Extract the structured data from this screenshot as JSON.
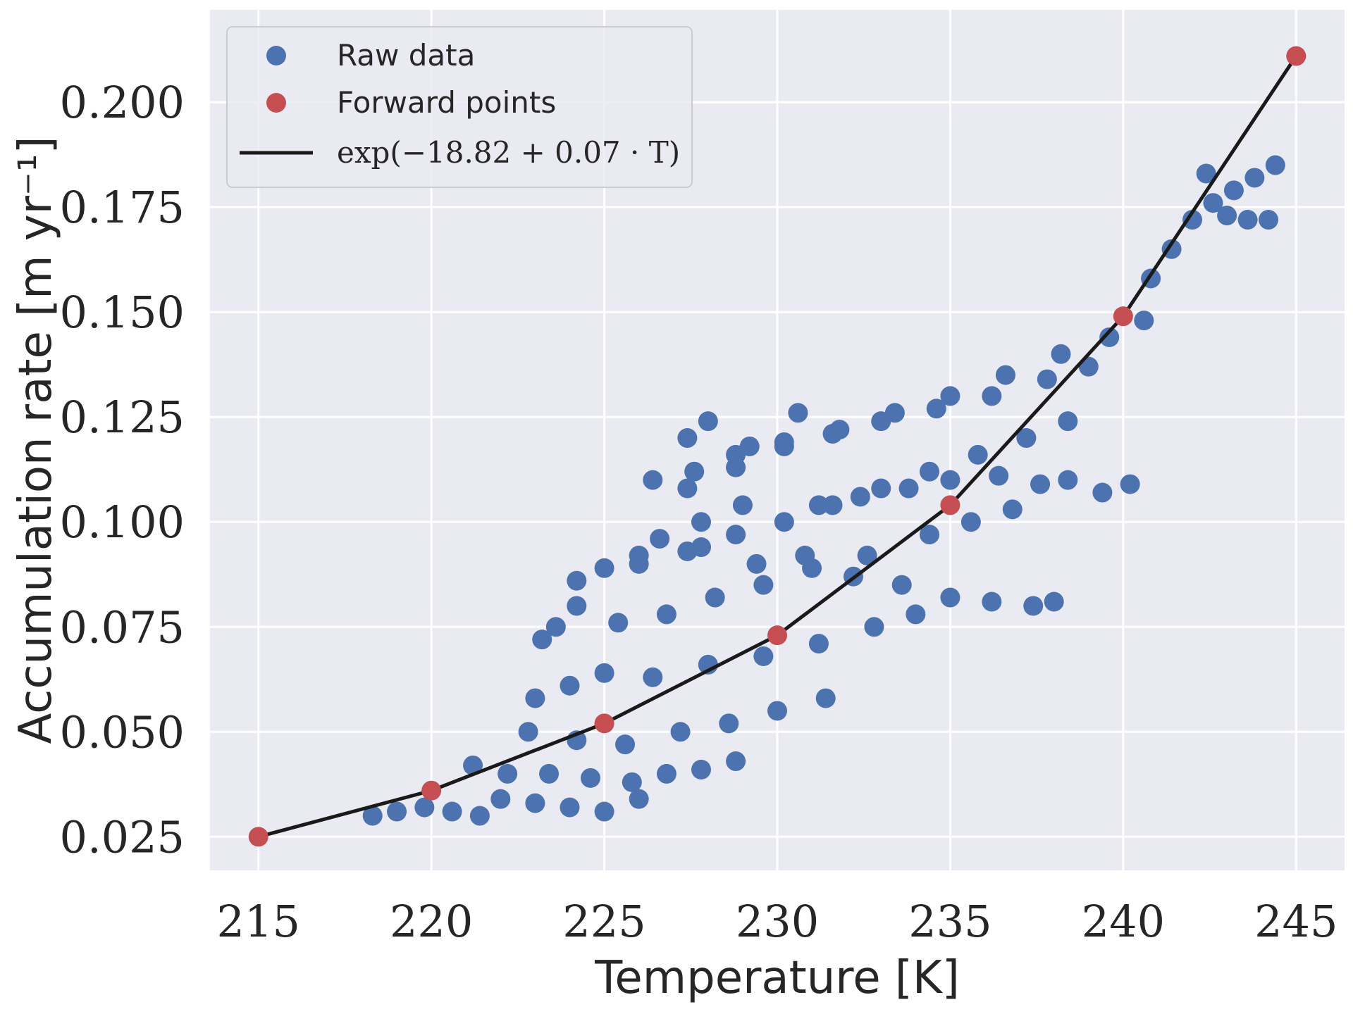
{
  "chart_data": {
    "type": "scatter",
    "title": "",
    "xlabel": "Temperature [K]",
    "ylabel": "Accumulation rate [m yr⁻¹]",
    "xlim": [
      213.6,
      246.4
    ],
    "ylim": [
      0.017,
      0.222
    ],
    "xticks": [
      215,
      220,
      225,
      230,
      235,
      240,
      245
    ],
    "yticks": [
      0.025,
      0.05,
      0.075,
      0.1,
      0.125,
      0.15,
      0.175,
      0.2
    ],
    "xtick_labels": [
      "215",
      "220",
      "225",
      "230",
      "235",
      "240",
      "245"
    ],
    "ytick_labels": [
      "0.025",
      "0.050",
      "0.075",
      "0.100",
      "0.125",
      "0.150",
      "0.175",
      "0.200"
    ],
    "grid": true,
    "legend_position": "top-left",
    "colors": {
      "background": "#eaeaf2",
      "grid": "#ffffff",
      "raw": "#4c72b0",
      "forward": "#c44e52",
      "fit": "#1a1a1a"
    },
    "series": [
      {
        "name": "Raw data",
        "kind": "scatter",
        "color": "#4c72b0",
        "x": [
          218.3,
          219.0,
          219.8,
          220.6,
          221.4,
          222.0,
          223.0,
          224.0,
          225.0,
          226.0,
          221.2,
          222.2,
          223.4,
          224.6,
          225.8,
          226.8,
          227.8,
          228.8,
          222.8,
          224.2,
          225.6,
          227.2,
          228.6,
          230.0,
          231.4,
          223.0,
          224.0,
          225.0,
          226.4,
          228.0,
          229.6,
          231.2,
          232.8,
          234.0,
          223.2,
          223.6,
          224.2,
          225.4,
          226.8,
          228.2,
          229.6,
          231.0,
          232.6,
          234.4,
          235.6,
          236.8,
          226.0,
          227.4,
          228.8,
          230.2,
          231.6,
          233.0,
          234.4,
          235.8,
          237.2,
          238.4,
          227.4,
          228.8,
          230.2,
          231.8,
          233.4,
          235.0,
          236.6,
          238.2,
          239.6,
          240.6,
          226.4,
          227.6,
          228.8,
          230.2,
          231.6,
          233.0,
          234.6,
          236.2,
          237.8,
          239.0,
          226.6,
          227.8,
          229.4,
          230.8,
          232.2,
          233.6,
          235.0,
          236.2,
          237.4,
          231.2,
          232.4,
          233.8,
          235.0,
          236.4,
          237.6,
          238.4,
          239.4,
          240.2,
          240.8,
          241.4,
          242.0,
          242.6,
          243.2,
          243.8,
          244.4,
          242.4,
          243.0,
          243.6,
          244.2,
          227.4,
          228.0,
          229.2,
          230.6,
          225.0,
          226.0,
          224.2,
          227.8,
          229.0,
          238.0
        ],
        "y": [
          0.03,
          0.031,
          0.032,
          0.031,
          0.03,
          0.034,
          0.033,
          0.032,
          0.031,
          0.034,
          0.042,
          0.04,
          0.04,
          0.039,
          0.038,
          0.04,
          0.041,
          0.043,
          0.05,
          0.048,
          0.047,
          0.05,
          0.052,
          0.055,
          0.058,
          0.058,
          0.061,
          0.064,
          0.063,
          0.066,
          0.068,
          0.071,
          0.075,
          0.078,
          0.072,
          0.075,
          0.08,
          0.076,
          0.078,
          0.082,
          0.085,
          0.089,
          0.092,
          0.097,
          0.1,
          0.103,
          0.09,
          0.093,
          0.097,
          0.1,
          0.104,
          0.108,
          0.112,
          0.116,
          0.12,
          0.124,
          0.108,
          0.113,
          0.118,
          0.122,
          0.126,
          0.13,
          0.135,
          0.14,
          0.144,
          0.148,
          0.11,
          0.112,
          0.116,
          0.119,
          0.121,
          0.124,
          0.127,
          0.13,
          0.134,
          0.137,
          0.096,
          0.094,
          0.09,
          0.092,
          0.087,
          0.085,
          0.082,
          0.081,
          0.08,
          0.104,
          0.106,
          0.108,
          0.11,
          0.111,
          0.109,
          0.11,
          0.107,
          0.109,
          0.158,
          0.165,
          0.172,
          0.176,
          0.179,
          0.182,
          0.185,
          0.183,
          0.173,
          0.172,
          0.172,
          0.12,
          0.124,
          0.118,
          0.126,
          0.089,
          0.092,
          0.086,
          0.1,
          0.104,
          0.081
        ]
      },
      {
        "name": "Forward points",
        "kind": "scatter",
        "color": "#c44e52",
        "x": [
          215,
          220,
          225,
          230,
          235,
          240,
          245
        ],
        "y": [
          0.025,
          0.036,
          0.052,
          0.073,
          0.104,
          0.149,
          0.211
        ]
      },
      {
        "name": "exp(−18.82 + 0.07 · T)",
        "kind": "line",
        "color": "#1a1a1a",
        "x": [
          215,
          220,
          225,
          230,
          235,
          240,
          245
        ],
        "y": [
          0.025,
          0.036,
          0.052,
          0.073,
          0.104,
          0.149,
          0.211
        ]
      }
    ]
  }
}
